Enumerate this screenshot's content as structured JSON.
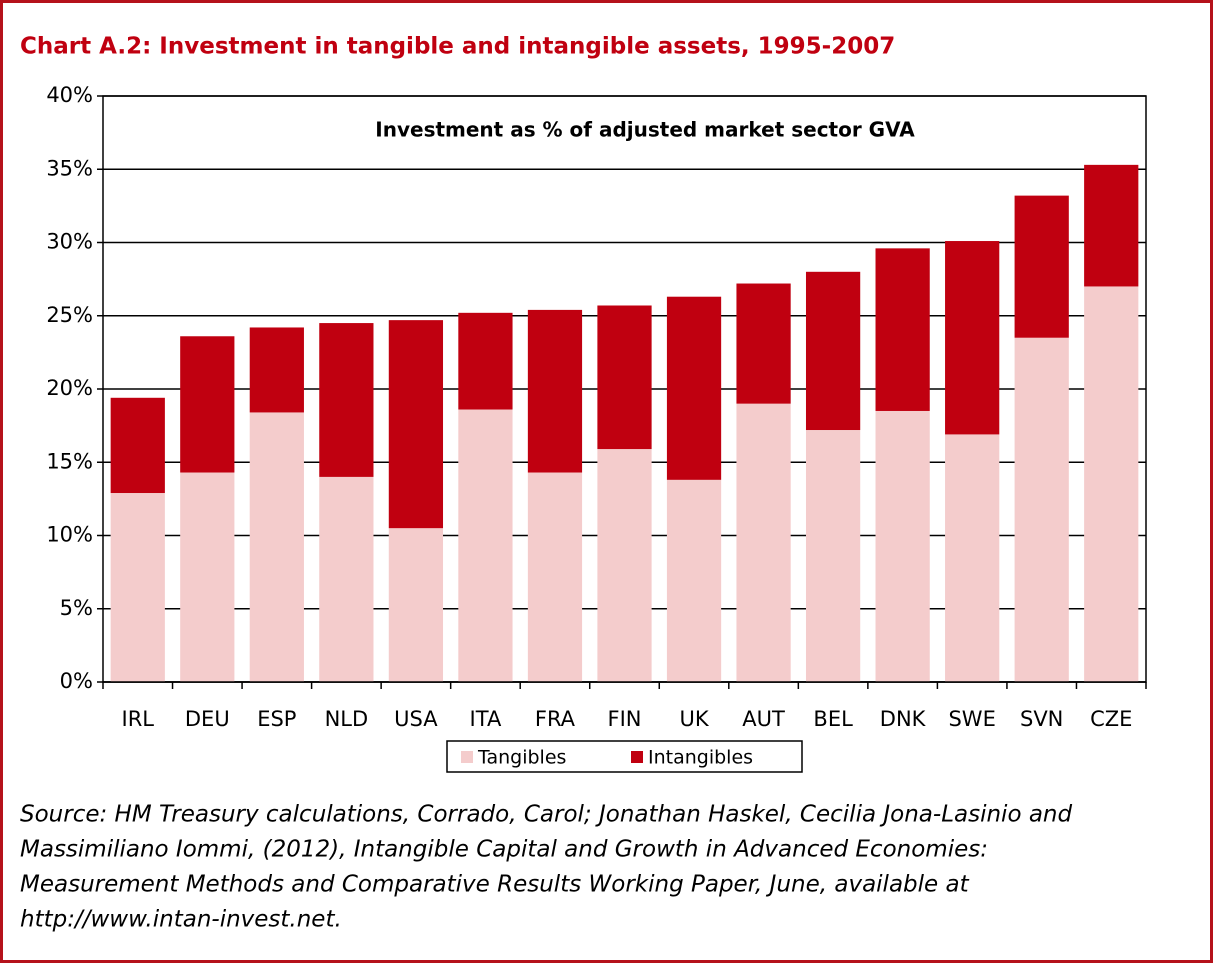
{
  "chart_data": {
    "type": "stacked_bar",
    "title": "Chart A.2: Investment in tangible and intangible assets, 1995-2007",
    "subtitle": "Investment as % of adjusted market sector GVA",
    "categories": [
      "IRL",
      "DEU",
      "ESP",
      "NLD",
      "USA",
      "ITA",
      "FRA",
      "FIN",
      "UK",
      "AUT",
      "BEL",
      "DNK",
      "SWE",
      "SVN",
      "CZE"
    ],
    "series": [
      {
        "name": "Tangibles",
        "color": "#f4cccc",
        "values": [
          12.9,
          14.3,
          18.4,
          14.0,
          10.5,
          18.6,
          14.3,
          15.9,
          13.8,
          19.0,
          17.2,
          18.5,
          16.9,
          23.5,
          27.0
        ]
      },
      {
        "name": "Intangibles",
        "color": "#c00010",
        "values": [
          6.5,
          9.3,
          5.8,
          10.5,
          14.2,
          6.6,
          11.1,
          9.8,
          12.5,
          8.2,
          10.8,
          11.1,
          13.2,
          9.7,
          8.3
        ]
      }
    ],
    "ylim": [
      0,
      40
    ],
    "yticks": [
      {
        "value": 0,
        "label": "0%"
      },
      {
        "value": 5,
        "label": "5%"
      },
      {
        "value": 10,
        "label": "10%"
      },
      {
        "value": 15,
        "label": "15%"
      },
      {
        "value": 20,
        "label": "20%"
      },
      {
        "value": 25,
        "label": "25%"
      },
      {
        "value": 30,
        "label": "30%"
      },
      {
        "value": 35,
        "label": "35%"
      },
      {
        "value": 40,
        "label": "40%"
      }
    ],
    "grid": true,
    "legend": "bottom",
    "source": [
      "Source: HM Treasury calculations, Corrado, Carol; Jonathan Haskel, Cecilia Jona-Lasinio and",
      "Massimiliano Iommi, (2012), Intangible Capital and Growth in Advanced Economies:",
      "Measurement Methods and Comparative Results Working Paper, June, available at",
      "http://www.intan-invest.net."
    ]
  }
}
